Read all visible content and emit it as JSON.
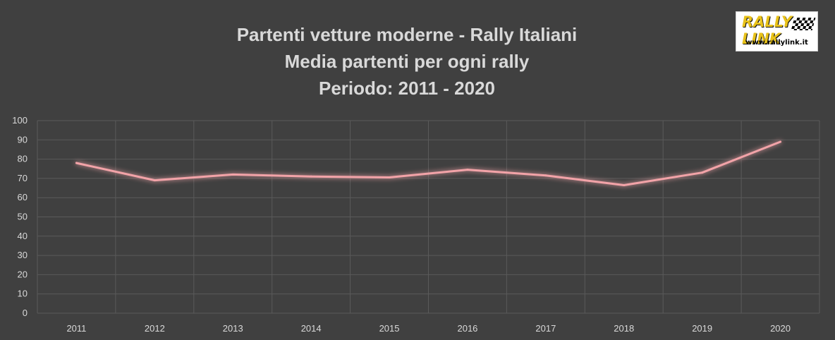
{
  "title_lines": [
    "Partenti vetture moderne - Rally Italiani",
    "Media partenti per ogni rally",
    "Periodo: 2011 - 2020"
  ],
  "logo": {
    "word": "RALLY LINK",
    "url": "www.rallylink.it"
  },
  "colors": {
    "background": "#404040",
    "line": "#f2a3a8",
    "grid": "#5a5a5a",
    "text": "#d9d9d9"
  },
  "chart_data": {
    "type": "line",
    "title": "Partenti vetture moderne - Rally Italiani / Media partenti per ogni rally / Periodo: 2011 - 2020",
    "categories": [
      "2011",
      "2012",
      "2013",
      "2014",
      "2015",
      "2016",
      "2017",
      "2018",
      "2019",
      "2020"
    ],
    "series": [
      {
        "values": [
          78,
          69,
          72,
          71,
          70.5,
          74.5,
          71.5,
          66.5,
          73,
          89
        ]
      }
    ],
    "y_ticks": [
      "0",
      "10",
      "20",
      "30",
      "40",
      "50",
      "60",
      "70",
      "80",
      "90",
      "100"
    ],
    "ylim": [
      0,
      100
    ],
    "grid": true,
    "legend": "none"
  }
}
